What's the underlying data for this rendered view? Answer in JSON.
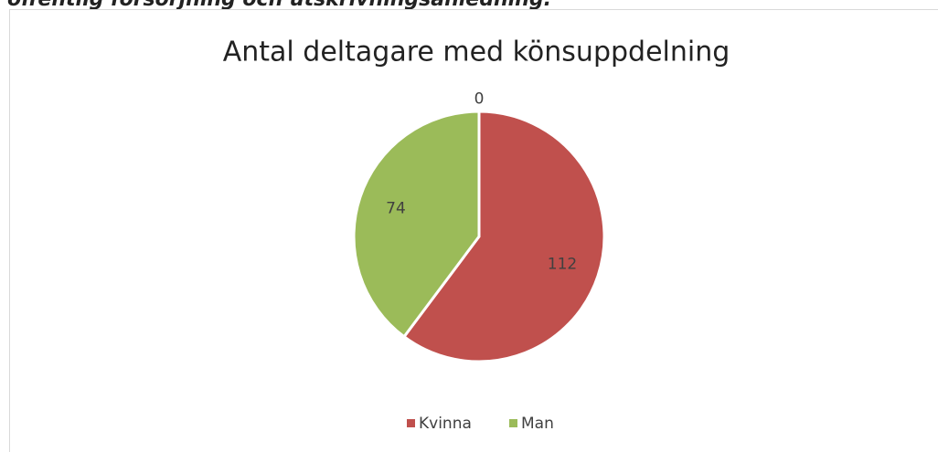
{
  "heading": "offentlig försörjning och utskrivningsanledning.",
  "chart_data": {
    "type": "pie",
    "title": "Antal deltagare med könsuppdelning",
    "categories": [
      null,
      "Kvinna",
      "Man"
    ],
    "values": [
      0,
      112,
      74
    ],
    "colors": [
      "#4f81bd",
      "#c0504d",
      "#9bbb59"
    ],
    "legend": "bottom"
  }
}
